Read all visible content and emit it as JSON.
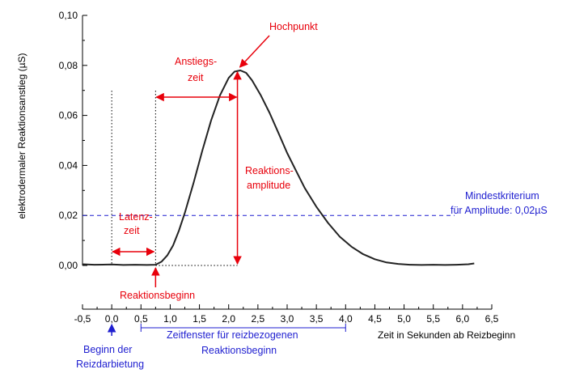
{
  "chart_data": {
    "type": "line",
    "xlabel": "Zeit in Sekunden ab Reizbeginn",
    "ylabel": "elektrodermaler Reaktionsanstieg (µS)",
    "xlim": [
      -0.5,
      6.5
    ],
    "ylim": [
      0.0,
      0.1
    ],
    "x_ticks": [
      "-0,5",
      "0,0",
      "0,5",
      "1,0",
      "1,5",
      "2,0",
      "2,5",
      "3,0",
      "3,5",
      "4,0",
      "4,5",
      "5,0",
      "5,5",
      "6,0",
      "6,5"
    ],
    "y_ticks": [
      "0,00",
      "0,02",
      "0,04",
      "0,06",
      "0,08",
      "0,10"
    ],
    "grid": false,
    "colors": {
      "curve": "#222222",
      "annotation": "#e8000b",
      "criterion": "#1f1fd0"
    },
    "series": [
      {
        "x": [
          -0.5,
          -0.3,
          0.0,
          0.2,
          0.4,
          0.6,
          0.75,
          0.85,
          0.95,
          1.05,
          1.15,
          1.25,
          1.4,
          1.55,
          1.7,
          1.85,
          2.0,
          2.1,
          2.2,
          2.3,
          2.4,
          2.55,
          2.7,
          2.85,
          3.0,
          3.15,
          3.3,
          3.5,
          3.7,
          3.9,
          4.1,
          4.3,
          4.5,
          4.7,
          4.9,
          5.1,
          5.3,
          5.5,
          5.7,
          5.9,
          6.1,
          6.2
        ],
        "y": [
          0.0005,
          0.0003,
          0.0004,
          0.0002,
          0.0003,
          0.0002,
          0.0003,
          0.0015,
          0.004,
          0.008,
          0.014,
          0.021,
          0.033,
          0.046,
          0.058,
          0.068,
          0.075,
          0.0775,
          0.078,
          0.077,
          0.074,
          0.068,
          0.061,
          0.053,
          0.045,
          0.038,
          0.031,
          0.0235,
          0.017,
          0.0115,
          0.0075,
          0.0045,
          0.0025,
          0.0012,
          0.0006,
          0.0003,
          0.0002,
          0.0003,
          0.0002,
          0.0003,
          0.0005,
          0.0008
        ]
      }
    ],
    "criterion_line": {
      "y": 0.02
    },
    "stimulus_onset_x": 0.0,
    "reaction_onset_x": 0.75,
    "peak": {
      "x": 2.15,
      "y": 0.078
    },
    "response_window": {
      "x_start": 0.5,
      "x_end": 4.0
    },
    "annotations": {
      "peak": "Hochpunkt",
      "rise_time_1": "Anstiegs-",
      "rise_time_2": "zeit",
      "amplitude_1": "Reaktions-",
      "amplitude_2": "amplitude",
      "latency_1": "Latenz-",
      "latency_2": "zeit",
      "reaction_onset": "Reaktionsbeginn",
      "criterion_1": "Mindestkriterium",
      "criterion_2": "für Amplitude: 0,02µS",
      "stimulus_1": "Beginn der",
      "stimulus_2": "Reizdarbietung",
      "window_1": "Zeitfenster für reizbezogenen",
      "window_2": "Reaktionsbeginn"
    }
  }
}
